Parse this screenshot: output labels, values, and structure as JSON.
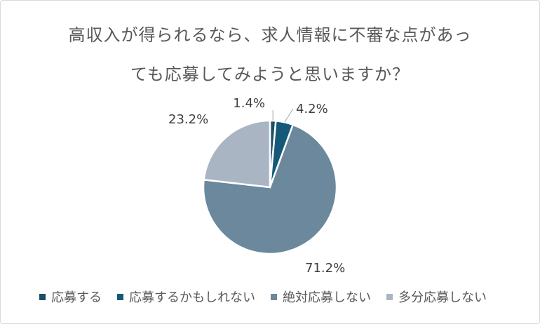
{
  "chart_data": {
    "type": "pie",
    "title_line1": "高収入が得られるなら、求人情報に不審な点があっ",
    "title_line2": "ても応募してみようと思いますか？",
    "slices": [
      {
        "name": "応募する",
        "value": 1.4,
        "label": "1.4%",
        "color": "#1f4e68"
      },
      {
        "name": "応募するかもしれない",
        "value": 4.2,
        "label": "4.2%",
        "color": "#145a78"
      },
      {
        "name": "絶対応募しない",
        "value": 71.2,
        "label": "71.2%",
        "color": "#6b889c"
      },
      {
        "name": "多分応募しない",
        "value": 23.2,
        "label": "23.2%",
        "color": "#aab5c4"
      }
    ],
    "legend_position": "bottom"
  }
}
